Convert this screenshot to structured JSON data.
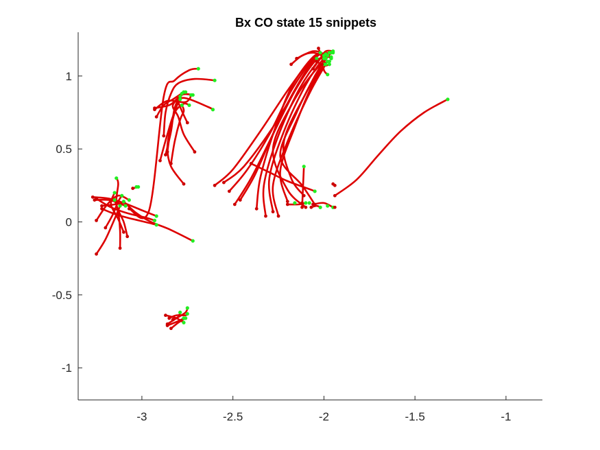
{
  "chart_data": {
    "type": "line",
    "title": "Bx  CO state 15 snippets",
    "xlabel": "",
    "ylabel": "",
    "xlim": [
      -3.35,
      -0.8
    ],
    "ylim": [
      -1.22,
      1.3
    ],
    "xticks": [
      -3,
      -2.5,
      -2,
      -1.5,
      -1
    ],
    "xtick_labels": [
      "-3",
      "-2.5",
      "-2",
      "-1.5",
      "-1"
    ],
    "yticks": [
      -1,
      -0.5,
      0,
      0.5,
      1
    ],
    "ytick_labels": [
      "-1",
      "-0.5",
      "0",
      "0.5",
      "1"
    ],
    "grid": false,
    "legend": "none",
    "colors": {
      "trajectory": "#dd0000",
      "start_marker": "#22ee22",
      "end_marker": "#cc0000",
      "axis": "#262626"
    },
    "series": [
      {
        "points": [
          [
            -3.07,
            0.09
          ],
          [
            -2.96,
            0.08
          ],
          [
            -2.88,
            0.86
          ],
          [
            -2.82,
            0.97
          ],
          [
            -2.74,
            1.04
          ],
          [
            -2.69,
            1.05
          ]
        ]
      },
      {
        "points": [
          [
            -2.88,
            0.59
          ],
          [
            -2.87,
            0.75
          ],
          [
            -2.84,
            0.88
          ],
          [
            -2.8,
            0.95
          ],
          [
            -2.71,
            0.98
          ],
          [
            -2.6,
            0.97
          ]
        ]
      },
      {
        "points": [
          [
            -2.9,
            0.42
          ],
          [
            -2.86,
            0.6
          ],
          [
            -2.82,
            0.75
          ],
          [
            -2.77,
            0.81
          ],
          [
            -2.74,
            0.8
          ]
        ]
      },
      {
        "points": [
          [
            -2.87,
            0.46
          ],
          [
            -2.84,
            0.62
          ],
          [
            -2.82,
            0.78
          ],
          [
            -2.78,
            0.87
          ],
          [
            -2.72,
            0.87
          ]
        ]
      },
      {
        "points": [
          [
            -2.86,
            0.48
          ],
          [
            -2.84,
            0.65
          ],
          [
            -2.81,
            0.8
          ],
          [
            -2.8,
            0.86
          ],
          [
            -2.78,
            0.88
          ]
        ]
      },
      {
        "points": [
          [
            -2.77,
            0.26
          ],
          [
            -2.84,
            0.38
          ],
          [
            -2.86,
            0.51
          ],
          [
            -2.84,
            0.66
          ],
          [
            -2.81,
            0.79
          ],
          [
            -2.79,
            0.84
          ]
        ]
      },
      {
        "points": [
          [
            -2.71,
            0.48
          ],
          [
            -2.77,
            0.6
          ],
          [
            -2.8,
            0.72
          ],
          [
            -2.83,
            0.8
          ],
          [
            -2.77,
            0.85
          ],
          [
            -2.64,
            0.79
          ],
          [
            -2.61,
            0.77
          ]
        ]
      },
      {
        "points": [
          [
            -2.84,
            0.4
          ],
          [
            -2.82,
            0.55
          ],
          [
            -2.79,
            0.7
          ],
          [
            -2.77,
            0.76
          ],
          [
            -2.78,
            0.8
          ]
        ]
      },
      {
        "points": [
          [
            -2.93,
            0.77
          ],
          [
            -2.86,
            0.83
          ],
          [
            -2.77,
            0.82
          ],
          [
            -2.74,
            0.84
          ],
          [
            -2.73,
            0.87
          ]
        ]
      },
      {
        "points": [
          [
            -2.93,
            0.78
          ],
          [
            -2.85,
            0.8
          ],
          [
            -2.81,
            0.84
          ],
          [
            -2.79,
            0.86
          ]
        ]
      },
      {
        "points": [
          [
            -2.92,
            0.72
          ],
          [
            -2.88,
            0.8
          ],
          [
            -2.83,
            0.84
          ],
          [
            -2.78,
            0.88
          ],
          [
            -2.76,
            0.89
          ]
        ]
      },
      {
        "points": [
          [
            -2.75,
            0.68
          ],
          [
            -2.78,
            0.76
          ],
          [
            -2.8,
            0.83
          ],
          [
            -2.78,
            0.88
          ],
          [
            -2.77,
            0.89
          ]
        ]
      },
      {
        "points": [
          [
            -3.27,
            0.17
          ],
          [
            -3.18,
            0.16
          ],
          [
            -3.1,
            0.13
          ],
          [
            -3.0,
            0.08
          ],
          [
            -2.92,
            0.04
          ]
        ]
      },
      {
        "points": [
          [
            -3.25,
            0.16
          ],
          [
            -3.17,
            0.1
          ],
          [
            -3.08,
            0.06
          ],
          [
            -2.98,
            0.03
          ],
          [
            -2.93,
            0.01
          ]
        ]
      },
      {
        "points": [
          [
            -3.22,
            0.09
          ],
          [
            -3.14,
            0.05
          ],
          [
            -3.05,
            0.02
          ],
          [
            -2.95,
            -0.01
          ],
          [
            -2.92,
            -0.02
          ]
        ]
      },
      {
        "points": [
          [
            -3.1,
            0.14
          ],
          [
            -3.03,
            0.06
          ],
          [
            -2.95,
            0.0
          ],
          [
            -2.85,
            -0.05
          ],
          [
            -2.72,
            -0.13
          ]
        ]
      },
      {
        "points": [
          [
            -3.25,
            0.01
          ],
          [
            -3.19,
            0.12
          ],
          [
            -3.13,
            0.18
          ],
          [
            -3.07,
            0.15
          ]
        ]
      },
      {
        "points": [
          [
            -3.25,
            -0.22
          ],
          [
            -3.2,
            -0.12
          ],
          [
            -3.15,
            0.02
          ],
          [
            -3.12,
            0.11
          ]
        ]
      },
      {
        "points": [
          [
            -3.2,
            -0.04
          ],
          [
            -3.16,
            0.05
          ],
          [
            -3.13,
            0.14
          ],
          [
            -3.11,
            0.18
          ]
        ]
      },
      {
        "points": [
          [
            -3.1,
            -0.07
          ],
          [
            -3.13,
            0.02
          ],
          [
            -3.17,
            0.12
          ],
          [
            -3.15,
            0.2
          ]
        ]
      },
      {
        "points": [
          [
            -3.08,
            -0.1
          ],
          [
            -3.1,
            0.0
          ],
          [
            -3.14,
            0.12
          ],
          [
            -3.13,
            0.26
          ],
          [
            -3.14,
            0.3
          ]
        ]
      },
      {
        "points": [
          [
            -3.12,
            -0.18
          ],
          [
            -3.12,
            -0.06
          ],
          [
            -3.13,
            0.07
          ],
          [
            -3.15,
            0.15
          ]
        ]
      },
      {
        "points": [
          [
            -3.26,
            0.15
          ],
          [
            -3.18,
            0.15
          ],
          [
            -3.11,
            0.12
          ],
          [
            -3.09,
            0.11
          ]
        ]
      },
      {
        "points": [
          [
            -3.22,
            0.11
          ],
          [
            -3.15,
            0.12
          ],
          [
            -3.11,
            0.13
          ],
          [
            -3.1,
            0.14
          ]
        ]
      },
      {
        "points": [
          [
            -3.05,
            0.23
          ],
          [
            -3.02,
            0.24
          ]
        ]
      },
      {
        "points": [
          [
            -2.6,
            0.25
          ],
          [
            -2.5,
            0.36
          ],
          [
            -2.35,
            0.62
          ],
          [
            -2.2,
            0.9
          ],
          [
            -2.08,
            1.1
          ],
          [
            -2.02,
            1.16
          ]
        ]
      },
      {
        "points": [
          [
            -2.52,
            0.21
          ],
          [
            -2.42,
            0.36
          ],
          [
            -2.3,
            0.6
          ],
          [
            -2.18,
            0.9
          ],
          [
            -2.05,
            1.13
          ],
          [
            -1.99,
            1.15
          ]
        ]
      },
      {
        "points": [
          [
            -2.49,
            0.12
          ],
          [
            -2.4,
            0.3
          ],
          [
            -2.3,
            0.55
          ],
          [
            -2.18,
            0.86
          ],
          [
            -2.05,
            1.12
          ],
          [
            -1.97,
            1.16
          ]
        ]
      },
      {
        "points": [
          [
            -2.46,
            0.15
          ],
          [
            -2.38,
            0.32
          ],
          [
            -2.28,
            0.6
          ],
          [
            -2.15,
            0.92
          ],
          [
            -2.05,
            1.1
          ],
          [
            -2.0,
            1.12
          ]
        ]
      },
      {
        "points": [
          [
            -2.37,
            0.09
          ],
          [
            -2.35,
            0.3
          ],
          [
            -2.28,
            0.6
          ],
          [
            -2.18,
            0.92
          ],
          [
            -2.06,
            1.13
          ],
          [
            -2.0,
            1.14
          ]
        ]
      },
      {
        "points": [
          [
            -2.32,
            0.04
          ],
          [
            -2.33,
            0.25
          ],
          [
            -2.26,
            0.56
          ],
          [
            -2.14,
            0.9
          ],
          [
            -2.02,
            1.12
          ],
          [
            -1.98,
            1.14
          ]
        ]
      },
      {
        "points": [
          [
            -2.28,
            0.07
          ],
          [
            -2.3,
            0.3
          ],
          [
            -2.22,
            0.62
          ],
          [
            -2.1,
            0.94
          ],
          [
            -2.0,
            1.12
          ],
          [
            -1.96,
            1.13
          ]
        ]
      },
      {
        "points": [
          [
            -2.25,
            0.04
          ],
          [
            -2.28,
            0.25
          ],
          [
            -2.2,
            0.55
          ],
          [
            -2.08,
            0.88
          ],
          [
            -2.0,
            1.06
          ],
          [
            -1.98,
            1.1
          ]
        ]
      },
      {
        "points": [
          [
            -2.2,
            0.14
          ],
          [
            -2.24,
            0.35
          ],
          [
            -2.16,
            0.65
          ],
          [
            -2.06,
            0.95
          ],
          [
            -1.99,
            1.08
          ]
        ]
      },
      {
        "points": [
          [
            -2.55,
            0.27
          ],
          [
            -2.44,
            0.38
          ],
          [
            -2.28,
            0.65
          ],
          [
            -2.12,
            0.98
          ],
          [
            -2.04,
            1.12
          ]
        ]
      },
      {
        "points": [
          [
            -2.05,
            0.12
          ],
          [
            -2.12,
            0.25
          ],
          [
            -2.24,
            0.45
          ],
          [
            -2.15,
            0.75
          ],
          [
            -2.05,
            1.0
          ],
          [
            -1.99,
            1.12
          ]
        ]
      },
      {
        "points": [
          [
            -2.1,
            0.1
          ],
          [
            -2.2,
            0.22
          ],
          [
            -2.28,
            0.5
          ],
          [
            -2.17,
            0.82
          ],
          [
            -2.04,
            1.05
          ],
          [
            -1.97,
            1.1
          ]
        ]
      },
      {
        "points": [
          [
            -2.11,
            0.18
          ],
          [
            -2.18,
            0.3
          ],
          [
            -2.22,
            0.55
          ],
          [
            -2.1,
            0.88
          ],
          [
            -2.0,
            1.08
          ]
        ]
      },
      {
        "points": [
          [
            -2.4,
            0.4
          ],
          [
            -2.3,
            0.34
          ],
          [
            -2.2,
            0.28
          ],
          [
            -2.07,
            0.22
          ],
          [
            -2.05,
            0.21
          ]
        ]
      },
      {
        "points": [
          [
            -2.2,
            0.12
          ],
          [
            -2.14,
            0.12
          ],
          [
            -2.1,
            0.13
          ]
        ]
      },
      {
        "points": [
          [
            -2.06,
            0.12
          ],
          [
            -2.0,
            0.13
          ],
          [
            -1.95,
            0.1
          ]
        ]
      },
      {
        "points": [
          [
            -2.07,
            0.1
          ],
          [
            -2.04,
            0.11
          ],
          [
            -2.02,
            0.1
          ]
        ]
      },
      {
        "points": [
          [
            -2.12,
            0.1
          ],
          [
            -2.11,
            0.38
          ]
        ]
      },
      {
        "points": [
          [
            -2.18,
            1.08
          ],
          [
            -2.12,
            1.14
          ],
          [
            -2.06,
            1.16
          ],
          [
            -2.0,
            1.14
          ],
          [
            -1.95,
            1.16
          ]
        ]
      },
      {
        "points": [
          [
            -2.15,
            1.12
          ],
          [
            -2.06,
            1.17
          ],
          [
            -2.0,
            1.15
          ],
          [
            -1.96,
            1.12
          ]
        ]
      },
      {
        "points": [
          [
            -2.03,
            1.19
          ],
          [
            -2.01,
            1.12
          ],
          [
            -2.0,
            1.04
          ],
          [
            -1.98,
            1.01
          ]
        ]
      },
      {
        "points": [
          [
            -2.06,
            1.05
          ],
          [
            -2.02,
            1.12
          ],
          [
            -1.99,
            1.17
          ],
          [
            -1.95,
            1.17
          ]
        ]
      },
      {
        "points": [
          [
            -2.01,
            1.08
          ],
          [
            -1.98,
            1.13
          ],
          [
            -1.96,
            1.16
          ]
        ]
      },
      {
        "points": [
          [
            -2.04,
            1.1
          ],
          [
            -2.0,
            1.07
          ],
          [
            -1.97,
            1.08
          ]
        ]
      },
      {
        "points": [
          [
            -1.94,
            0.18
          ],
          [
            -1.82,
            0.29
          ],
          [
            -1.7,
            0.46
          ],
          [
            -1.58,
            0.62
          ],
          [
            -1.45,
            0.75
          ],
          [
            -1.32,
            0.84
          ]
        ]
      },
      {
        "points": [
          [
            -2.87,
            -0.64
          ],
          [
            -2.81,
            -0.66
          ],
          [
            -2.77,
            -0.69
          ]
        ]
      },
      {
        "points": [
          [
            -2.86,
            -0.7
          ],
          [
            -2.81,
            -0.66
          ],
          [
            -2.76,
            -0.62
          ],
          [
            -2.75,
            -0.59
          ]
        ]
      },
      {
        "points": [
          [
            -2.84,
            -0.73
          ],
          [
            -2.8,
            -0.69
          ],
          [
            -2.76,
            -0.66
          ]
        ]
      },
      {
        "points": [
          [
            -2.85,
            -0.66
          ],
          [
            -2.81,
            -0.64
          ],
          [
            -2.76,
            -0.64
          ],
          [
            -2.75,
            -0.63
          ]
        ]
      },
      {
        "points": [
          [
            -2.83,
            -0.67
          ],
          [
            -2.8,
            -0.65
          ],
          [
            -2.79,
            -0.62
          ]
        ]
      },
      {
        "points": [
          [
            -2.86,
            -0.71
          ],
          [
            -2.8,
            -0.68
          ],
          [
            -2.77,
            -0.66
          ]
        ]
      }
    ],
    "extra_start_markers": [
      [
        -2.08,
        0.13
      ],
      [
        -1.98,
        0.11
      ],
      [
        -2.16,
        0.13
      ],
      [
        -3.03,
        0.24
      ]
    ],
    "extra_end_markers": [
      [
        -1.94,
        0.1
      ],
      [
        -1.95,
        0.26
      ],
      [
        -1.94,
        0.25
      ],
      [
        -2.12,
        0.13
      ]
    ]
  }
}
